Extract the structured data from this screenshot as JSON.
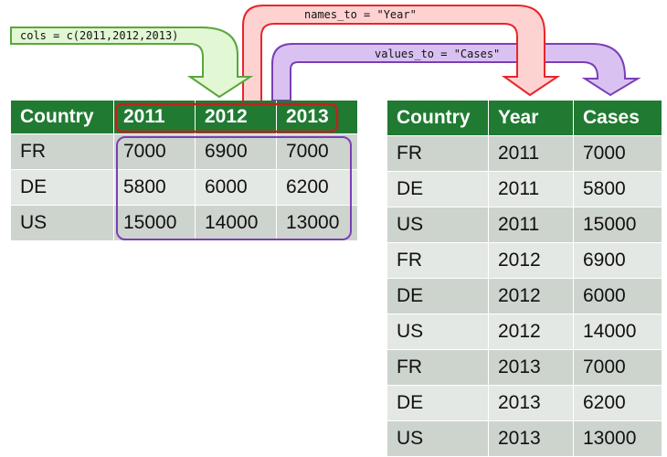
{
  "labels": {
    "cols": "cols = c(2011,2012,2013)",
    "names_to": "names_to = \"Year\"",
    "values_to": "values_to = \"Cases\""
  },
  "colors": {
    "header_green": "#217a32",
    "row_dark": "#cdd3cd",
    "row_light": "#e4e8e4",
    "cols_arrow_fill": "#e2f7d4",
    "cols_arrow_stroke": "#5aa63c",
    "names_arrow_fill": "#ffd2d2",
    "names_arrow_stroke": "#e8262b",
    "values_arrow_fill": "#d9c2f2",
    "values_arrow_stroke": "#7b3fb5",
    "year_highlight": "#c0221f",
    "value_highlight": "#7b3fb5"
  },
  "wide_table": {
    "headers": [
      "Country",
      "2011",
      "2012",
      "2013"
    ],
    "rows": [
      [
        "FR",
        "7000",
        "6900",
        "7000"
      ],
      [
        "DE",
        "5800",
        "6000",
        "6200"
      ],
      [
        "US",
        "15000",
        "14000",
        "13000"
      ]
    ]
  },
  "long_table": {
    "headers": [
      "Country",
      "Year",
      "Cases"
    ],
    "rows": [
      [
        "FR",
        "2011",
        "7000"
      ],
      [
        "DE",
        "2011",
        "5800"
      ],
      [
        "US",
        "2011",
        "15000"
      ],
      [
        "FR",
        "2012",
        "6900"
      ],
      [
        "DE",
        "2012",
        "6000"
      ],
      [
        "US",
        "2012",
        "14000"
      ],
      [
        "FR",
        "2013",
        "7000"
      ],
      [
        "DE",
        "2013",
        "6200"
      ],
      [
        "US",
        "2013",
        "13000"
      ]
    ]
  }
}
